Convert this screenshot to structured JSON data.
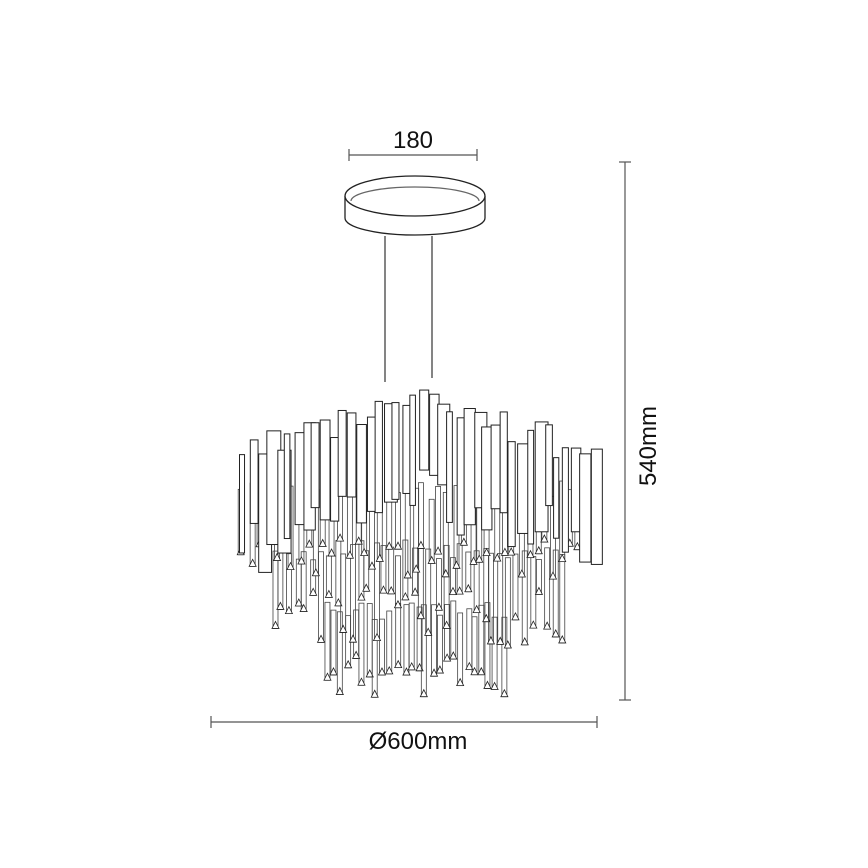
{
  "drawing": {
    "line_color": "#222222",
    "background": "#ffffff"
  },
  "dimensions": {
    "canopy_width": "180",
    "height": "540mm",
    "diameter": "Ø600mm"
  }
}
